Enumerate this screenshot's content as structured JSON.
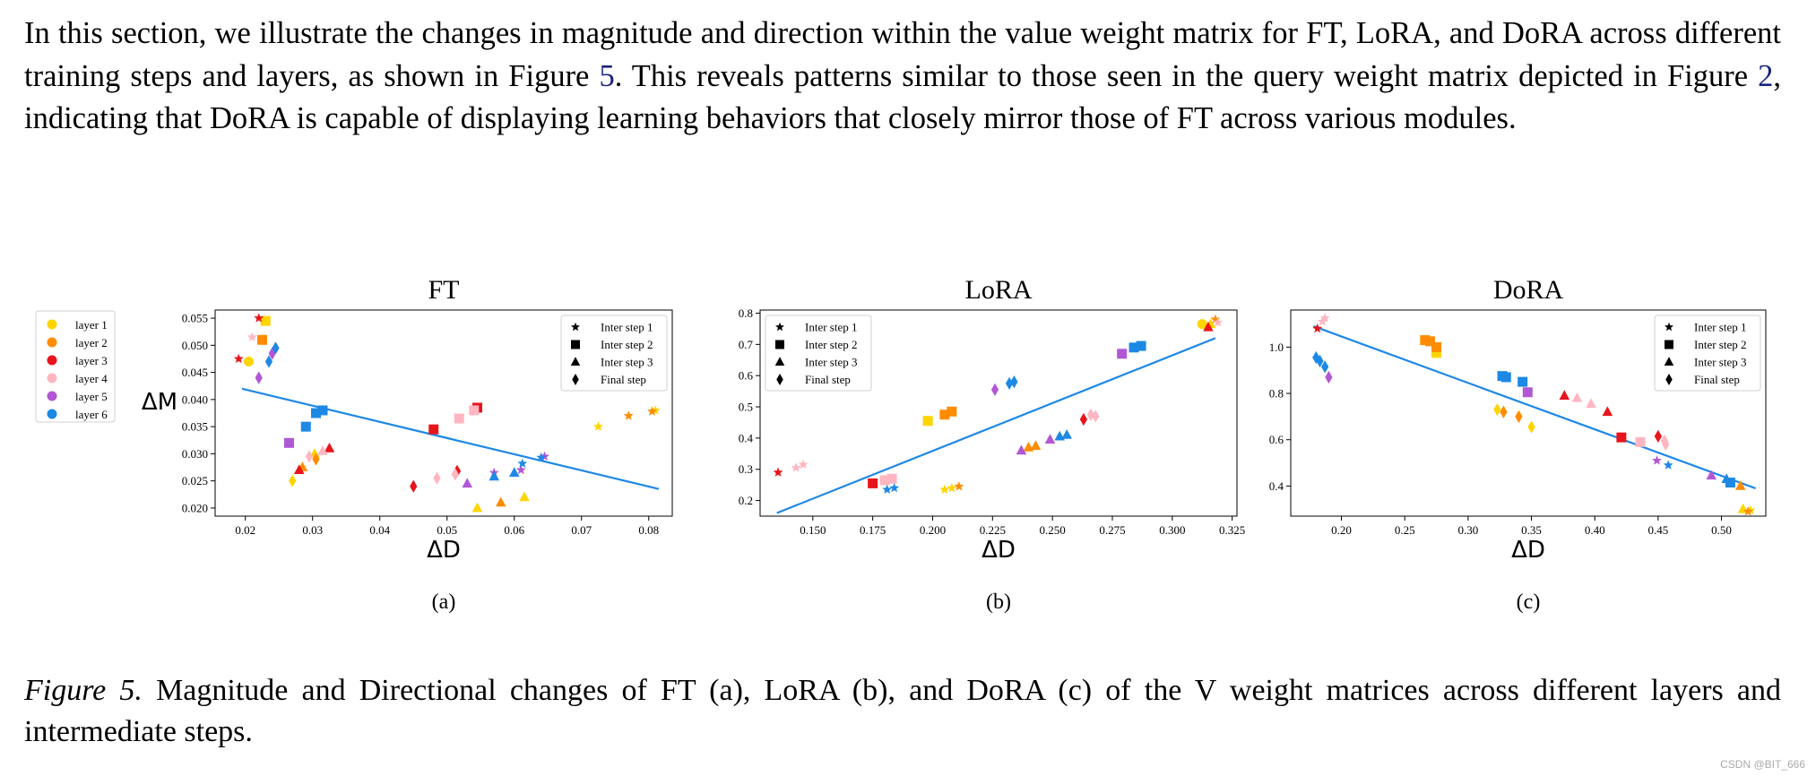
{
  "paragraph": {
    "t1": "In this section, we illustrate the changes in magnitude and direction within the value weight matrix for FT, LoRA, and DoRA across different training steps and layers, as shown in Figure ",
    "r1": "5",
    "t2": ". This reveals patterns similar to those seen in the query weight matrix depicted in Figure ",
    "r2": "2",
    "t3": ", indicating that DoRA is capable of displaying learning behaviors that closely mirror those of FT across various modules."
  },
  "caption": {
    "label": "Figure 5.",
    "text": " Magnitude and Directional changes of FT (a), LoRA (b), and DoRA (c) of the V weight matrices across different layers and intermediate steps."
  },
  "watermark": "CSDN @BIT_666",
  "layer_legend": [
    {
      "label": "layer 1",
      "color": "#FFD400"
    },
    {
      "label": "layer 2",
      "color": "#FF8C00"
    },
    {
      "label": "layer 3",
      "color": "#E8141B"
    },
    {
      "label": "layer 4",
      "color": "#FFB6C1"
    },
    {
      "label": "layer 5",
      "color": "#B157D4"
    },
    {
      "label": "layer 6",
      "color": "#1E88E5"
    }
  ],
  "step_legend": [
    {
      "label": "Inter step 1",
      "marker": "star"
    },
    {
      "label": "Inter step 2",
      "marker": "square"
    },
    {
      "label": "Inter step 3",
      "marker": "triangle"
    },
    {
      "label": "Final step",
      "marker": "diamond"
    }
  ],
  "chart_data": [
    {
      "type": "scatter",
      "title": "FT",
      "sublabel": "(a)",
      "xlabel": "ΔD",
      "ylabel": "ΔM",
      "xlim": [
        0.0155,
        0.0835
      ],
      "ylim": [
        0.0185,
        0.0565
      ],
      "xticks": [
        "0.02",
        "0.03",
        "0.04",
        "0.05",
        "0.06",
        "0.07",
        "0.08"
      ],
      "yticks": [
        "0.020",
        "0.025",
        "0.030",
        "0.035",
        "0.040",
        "0.045",
        "0.050",
        "0.055"
      ],
      "fit_line": [
        [
          0.0195,
          0.042
        ],
        [
          0.0815,
          0.0235
        ]
      ],
      "series": [
        {
          "name": "layer 1",
          "points": [
            [
              0.023,
              0.0545,
              "square"
            ],
            [
              0.0205,
              0.047,
              "circle"
            ],
            [
              0.0303,
              0.03,
              "triangle"
            ],
            [
              0.027,
              0.025,
              "diamond"
            ],
            [
              0.0725,
              0.035,
              "star"
            ],
            [
              0.081,
              0.038,
              "star"
            ],
            [
              0.0615,
              0.022,
              "triangle"
            ],
            [
              0.0545,
              0.02,
              "triangle"
            ]
          ]
        },
        {
          "name": "layer 2",
          "points": [
            [
              0.0225,
              0.051,
              "square"
            ],
            [
              0.0285,
              0.0275,
              "triangle"
            ],
            [
              0.058,
              0.021,
              "triangle"
            ],
            [
              0.077,
              0.037,
              "star"
            ],
            [
              0.0805,
              0.0378,
              "star"
            ],
            [
              0.0305,
              0.029,
              "diamond"
            ]
          ]
        },
        {
          "name": "layer 3",
          "points": [
            [
              0.022,
              0.055,
              "star"
            ],
            [
              0.019,
              0.0475,
              "star"
            ],
            [
              0.028,
              0.027,
              "triangle"
            ],
            [
              0.0325,
              0.031,
              "triangle"
            ],
            [
              0.048,
              0.0345,
              "square"
            ],
            [
              0.0545,
              0.0385,
              "square"
            ],
            [
              0.045,
              0.024,
              "diamond"
            ],
            [
              0.0515,
              0.0268,
              "diamond"
            ]
          ]
        },
        {
          "name": "layer 4",
          "points": [
            [
              0.021,
              0.0515,
              "star"
            ],
            [
              0.0315,
              0.0305,
              "triangle"
            ],
            [
              0.0518,
              0.0365,
              "square"
            ],
            [
              0.054,
              0.038,
              "square"
            ],
            [
              0.0485,
              0.0255,
              "diamond"
            ],
            [
              0.0512,
              0.0262,
              "diamond"
            ],
            [
              0.0295,
              0.0295,
              "diamond"
            ]
          ]
        },
        {
          "name": "layer 5",
          "points": [
            [
              0.024,
              0.0485,
              "diamond"
            ],
            [
              0.022,
              0.044,
              "diamond"
            ],
            [
              0.0265,
              0.032,
              "square"
            ],
            [
              0.053,
              0.0245,
              "triangle"
            ],
            [
              0.057,
              0.0265,
              "star"
            ],
            [
              0.061,
              0.027,
              "star"
            ],
            [
              0.0645,
              0.0295,
              "star"
            ]
          ]
        },
        {
          "name": "layer 6",
          "points": [
            [
              0.0245,
              0.0495,
              "diamond"
            ],
            [
              0.0235,
              0.047,
              "diamond"
            ],
            [
              0.0305,
              0.0375,
              "square"
            ],
            [
              0.029,
              0.035,
              "square"
            ],
            [
              0.0315,
              0.038,
              "square"
            ],
            [
              0.057,
              0.0258,
              "triangle"
            ],
            [
              0.06,
              0.0265,
              "triangle"
            ],
            [
              0.0612,
              0.0282,
              "star"
            ],
            [
              0.064,
              0.0293,
              "star"
            ]
          ]
        }
      ]
    },
    {
      "type": "scatter",
      "title": "LoRA",
      "sublabel": "(b)",
      "xlabel": "ΔD",
      "ylabel": "",
      "xlim": [
        0.128,
        0.327
      ],
      "ylim": [
        0.15,
        0.81
      ],
      "xticks": [
        "0.150",
        "0.175",
        "0.200",
        "0.225",
        "0.250",
        "0.275",
        "0.300",
        "0.325"
      ],
      "yticks": [
        "0.2",
        "0.3",
        "0.4",
        "0.5",
        "0.6",
        "0.7",
        "0.8"
      ],
      "fit_line": [
        [
          0.135,
          0.16
        ],
        [
          0.318,
          0.72
        ]
      ],
      "series": [
        {
          "name": "layer 1",
          "points": [
            [
              0.198,
              0.455,
              "square"
            ],
            [
              0.205,
              0.235,
              "star"
            ],
            [
              0.3125,
              0.765,
              "circle"
            ],
            [
              0.316,
              0.765,
              "triangle"
            ],
            [
              0.208,
              0.24,
              "star"
            ]
          ]
        },
        {
          "name": "layer 2",
          "points": [
            [
              0.205,
              0.475,
              "square"
            ],
            [
              0.208,
              0.485,
              "square"
            ],
            [
              0.24,
              0.37,
              "triangle"
            ],
            [
              0.243,
              0.375,
              "triangle"
            ],
            [
              0.211,
              0.245,
              "star"
            ],
            [
              0.318,
              0.78,
              "star"
            ]
          ]
        },
        {
          "name": "layer 3",
          "points": [
            [
              0.1355,
              0.29,
              "star"
            ],
            [
              0.175,
              0.255,
              "square"
            ],
            [
              0.315,
              0.755,
              "triangle"
            ],
            [
              0.263,
              0.46,
              "diamond"
            ]
          ]
        },
        {
          "name": "layer 4",
          "points": [
            [
              0.143,
              0.305,
              "star"
            ],
            [
              0.146,
              0.315,
              "star"
            ],
            [
              0.18,
              0.265,
              "square"
            ],
            [
              0.183,
              0.27,
              "square"
            ],
            [
              0.266,
              0.475,
              "diamond"
            ],
            [
              0.268,
              0.47,
              "diamond"
            ],
            [
              0.319,
              0.77,
              "star"
            ]
          ]
        },
        {
          "name": "layer 5",
          "points": [
            [
              0.279,
              0.67,
              "square"
            ],
            [
              0.226,
              0.555,
              "diamond"
            ],
            [
              0.249,
              0.395,
              "triangle"
            ],
            [
              0.237,
              0.36,
              "triangle"
            ]
          ]
        },
        {
          "name": "layer 6",
          "points": [
            [
              0.284,
              0.69,
              "square"
            ],
            [
              0.287,
              0.695,
              "square"
            ],
            [
              0.232,
              0.575,
              "diamond"
            ],
            [
              0.234,
              0.58,
              "diamond"
            ],
            [
              0.253,
              0.405,
              "triangle"
            ],
            [
              0.256,
              0.41,
              "triangle"
            ],
            [
              0.181,
              0.235,
              "star"
            ],
            [
              0.184,
              0.24,
              "star"
            ]
          ]
        }
      ]
    },
    {
      "type": "scatter",
      "title": "DoRA",
      "sublabel": "(c)",
      "xlabel": "ΔD",
      "ylabel": "",
      "xlim": [
        0.16,
        0.535
      ],
      "ylim": [
        0.27,
        1.16
      ],
      "xticks": [
        "0.20",
        "0.25",
        "0.30",
        "0.35",
        "0.40",
        "0.45",
        "0.50"
      ],
      "yticks": [
        "0.4",
        "0.6",
        "0.8",
        "1.0"
      ],
      "fit_line": [
        [
          0.178,
          1.09
        ],
        [
          0.527,
          0.39
        ]
      ],
      "series": [
        {
          "name": "layer 1",
          "points": [
            [
              0.275,
              0.975,
              "square"
            ],
            [
              0.323,
              0.73,
              "diamond"
            ],
            [
              0.35,
              0.655,
              "diamond"
            ],
            [
              0.517,
              0.3,
              "triangle"
            ],
            [
              0.523,
              0.295,
              "star"
            ]
          ]
        },
        {
          "name": "layer 2",
          "points": [
            [
              0.266,
              1.03,
              "square"
            ],
            [
              0.27,
              1.025,
              "square"
            ],
            [
              0.275,
              1.0,
              "square"
            ],
            [
              0.328,
              0.72,
              "diamond"
            ],
            [
              0.34,
              0.7,
              "diamond"
            ],
            [
              0.515,
              0.4,
              "triangle"
            ],
            [
              0.521,
              0.29,
              "star"
            ]
          ]
        },
        {
          "name": "layer 3",
          "points": [
            [
              0.181,
              1.08,
              "star"
            ],
            [
              0.376,
              0.79,
              "triangle"
            ],
            [
              0.41,
              0.72,
              "triangle"
            ],
            [
              0.421,
              0.61,
              "square"
            ],
            [
              0.45,
              0.615,
              "diamond"
            ]
          ]
        },
        {
          "name": "layer 4",
          "points": [
            [
              0.187,
              1.125,
              "star"
            ],
            [
              0.185,
              1.11,
              "star"
            ],
            [
              0.386,
              0.78,
              "triangle"
            ],
            [
              0.397,
              0.755,
              "triangle"
            ],
            [
              0.436,
              0.59,
              "square"
            ],
            [
              0.455,
              0.595,
              "diamond"
            ],
            [
              0.456,
              0.58,
              "diamond"
            ]
          ]
        },
        {
          "name": "layer 5",
          "points": [
            [
              0.19,
              0.87,
              "diamond"
            ],
            [
              0.347,
              0.805,
              "square"
            ],
            [
              0.449,
              0.51,
              "star"
            ],
            [
              0.492,
              0.445,
              "triangle"
            ]
          ]
        },
        {
          "name": "layer 6",
          "points": [
            [
              0.18,
              0.955,
              "diamond"
            ],
            [
              0.183,
              0.94,
              "diamond"
            ],
            [
              0.187,
              0.915,
              "diamond"
            ],
            [
              0.327,
              0.875,
              "square"
            ],
            [
              0.33,
              0.87,
              "square"
            ],
            [
              0.343,
              0.85,
              "square"
            ],
            [
              0.458,
              0.49,
              "star"
            ],
            [
              0.504,
              0.43,
              "triangle"
            ],
            [
              0.507,
              0.415,
              "square"
            ]
          ]
        }
      ]
    }
  ]
}
